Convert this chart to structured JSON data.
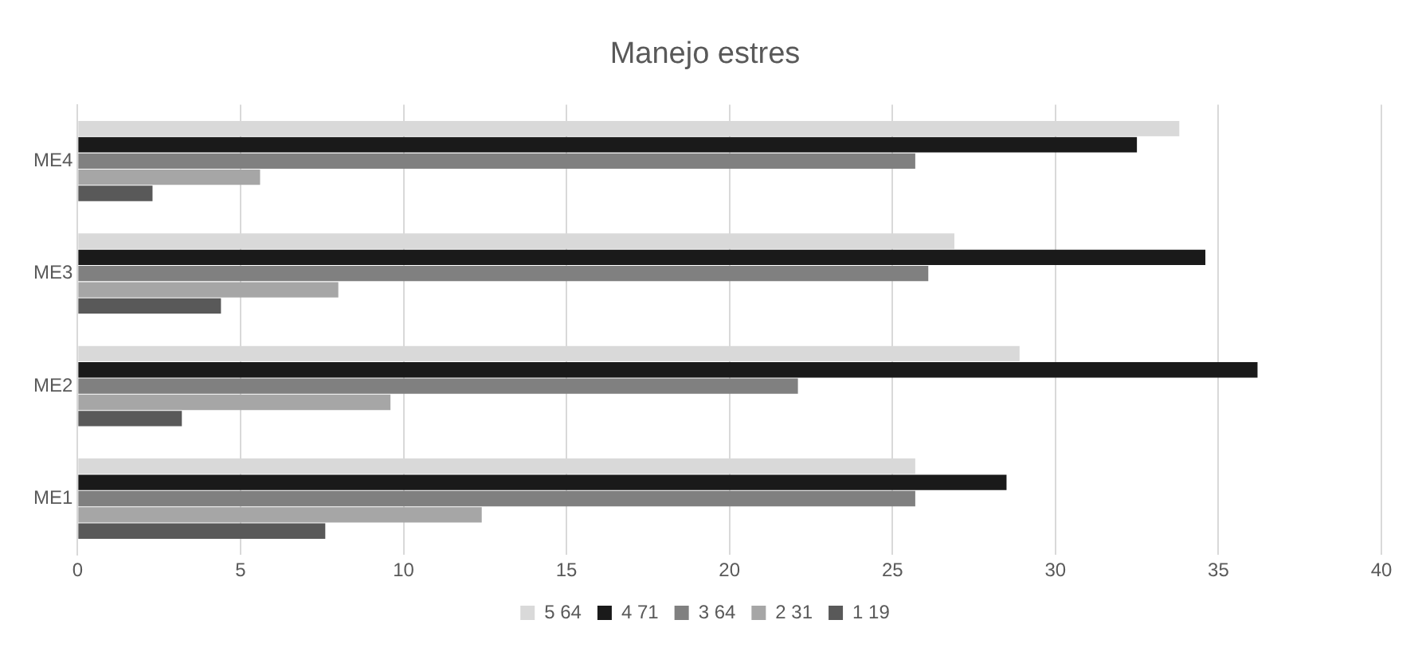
{
  "chart_data": {
    "type": "bar",
    "orientation": "horizontal",
    "title": "Manejo estres",
    "categories": [
      "ME4",
      "ME3",
      "ME2",
      "ME1"
    ],
    "series": [
      {
        "name": "5 64",
        "color": "#d9d9d9",
        "values": [
          33.8,
          26.9,
          28.9,
          25.7
        ]
      },
      {
        "name": "4 71",
        "color": "#1a1a1a",
        "values": [
          32.5,
          34.6,
          36.2,
          28.5
        ]
      },
      {
        "name": "3 64",
        "color": "#808080",
        "values": [
          25.7,
          26.1,
          22.1,
          25.7
        ]
      },
      {
        "name": "2 31",
        "color": "#a6a6a6",
        "values": [
          5.6,
          8.0,
          9.6,
          12.4
        ]
      },
      {
        "name": "1 19",
        "color": "#595959",
        "values": [
          2.3,
          4.4,
          3.2,
          7.6
        ]
      }
    ],
    "xlim": [
      0,
      40
    ],
    "xticks": [
      0,
      5,
      10,
      15,
      20,
      25,
      30,
      35,
      40
    ],
    "grid": "x",
    "legend": "bottom"
  }
}
